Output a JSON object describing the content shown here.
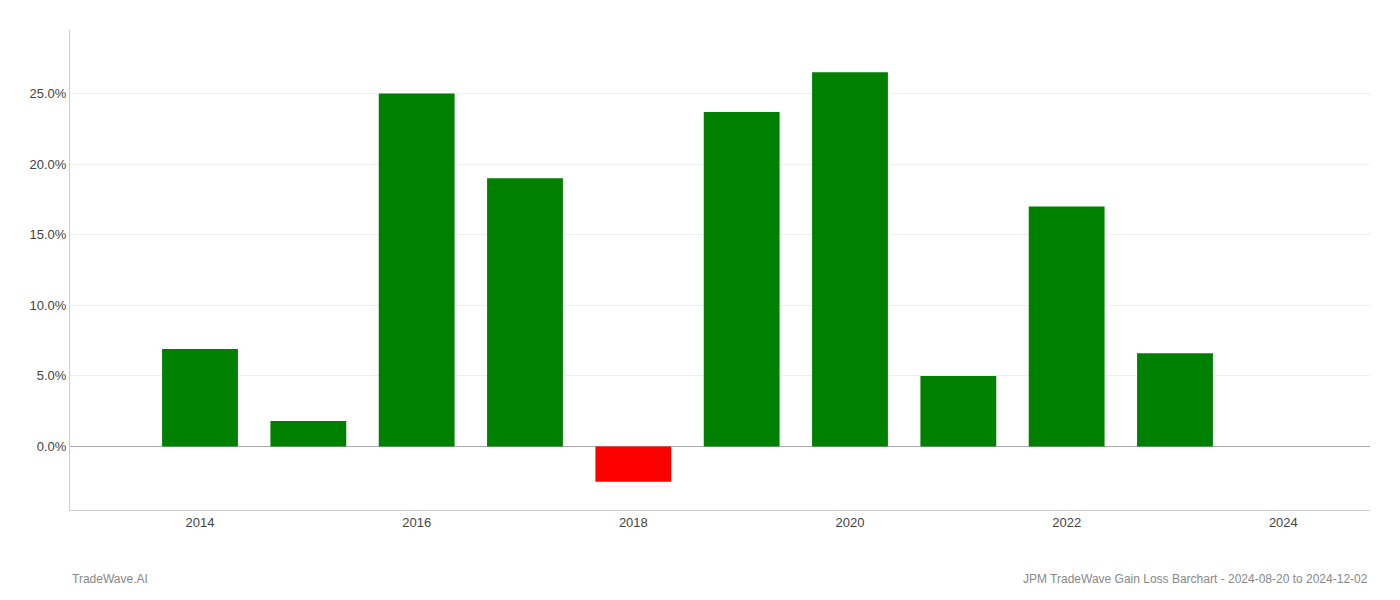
{
  "chart_data": {
    "type": "bar",
    "x": [
      2014,
      2015,
      2016,
      2017,
      2018,
      2019,
      2020,
      2021,
      2022,
      2023
    ],
    "values": [
      0.069,
      0.018,
      0.25,
      0.19,
      -0.025,
      0.237,
      0.265,
      0.05,
      0.17,
      0.066
    ],
    "colors": [
      "#008000",
      "#008000",
      "#008000",
      "#008000",
      "#ff0000",
      "#008000",
      "#008000",
      "#008000",
      "#008000",
      "#008000"
    ],
    "xlim": [
      2012.8,
      2024.8
    ],
    "ylim": [
      -0.045,
      0.295
    ],
    "xticks": [
      2014,
      2016,
      2018,
      2020,
      2022,
      2024
    ],
    "yticks": [
      {
        "value": 0.0,
        "label": "0.0%"
      },
      {
        "value": 0.05,
        "label": "5.0%"
      },
      {
        "value": 0.1,
        "label": "10.0%"
      },
      {
        "value": 0.15,
        "label": "15.0%"
      },
      {
        "value": 0.2,
        "label": "20.0%"
      },
      {
        "value": 0.25,
        "label": "25.0%"
      }
    ],
    "grid": "y",
    "annotations": [
      "TradeWave.AI",
      "JPM TradeWave Gain Loss Barchart - 2024-08-20 to 2024-12-02"
    ]
  }
}
